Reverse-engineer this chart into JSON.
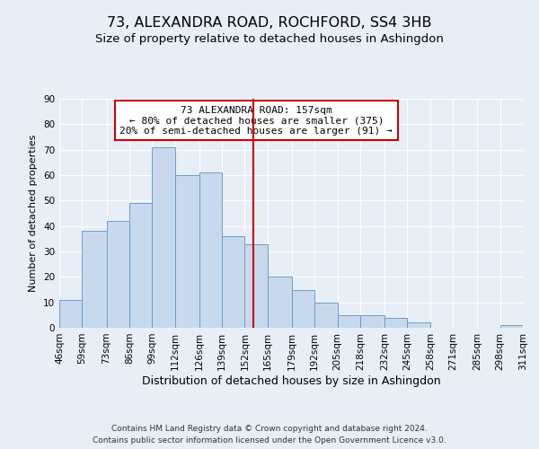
{
  "title": "73, ALEXANDRA ROAD, ROCHFORD, SS4 3HB",
  "subtitle": "Size of property relative to detached houses in Ashingdon",
  "xlabel": "Distribution of detached houses by size in Ashingdon",
  "ylabel": "Number of detached properties",
  "bin_edges": [
    46,
    59,
    73,
    86,
    99,
    112,
    126,
    139,
    152,
    165,
    179,
    192,
    205,
    218,
    232,
    245,
    258,
    271,
    285,
    298,
    311
  ],
  "bar_heights": [
    11,
    38,
    42,
    49,
    71,
    60,
    61,
    36,
    33,
    20,
    15,
    10,
    5,
    5,
    4,
    2,
    0,
    0,
    0,
    1
  ],
  "bar_color": "#c8d9ed",
  "bar_edgecolor": "#6a9ec8",
  "vline_x": 157,
  "vline_color": "#cc0000",
  "ylim": [
    0,
    90
  ],
  "yticks": [
    0,
    10,
    20,
    30,
    40,
    50,
    60,
    70,
    80,
    90
  ],
  "annotation_title": "73 ALEXANDRA ROAD: 157sqm",
  "annotation_line1": "← 80% of detached houses are smaller (375)",
  "annotation_line2": "20% of semi-detached houses are larger (91) →",
  "annotation_box_facecolor": "#ffffff",
  "annotation_box_edgecolor": "#cc0000",
  "footnote1": "Contains HM Land Registry data © Crown copyright and database right 2024.",
  "footnote2": "Contains public sector information licensed under the Open Government Licence v3.0.",
  "background_color": "#e8eef6",
  "plot_background_color": "#e8eef6",
  "grid_color": "#ffffff",
  "title_fontsize": 11.5,
  "subtitle_fontsize": 9.5,
  "xlabel_fontsize": 9,
  "ylabel_fontsize": 8,
  "tick_fontsize": 7.5,
  "footnote_fontsize": 6.5
}
